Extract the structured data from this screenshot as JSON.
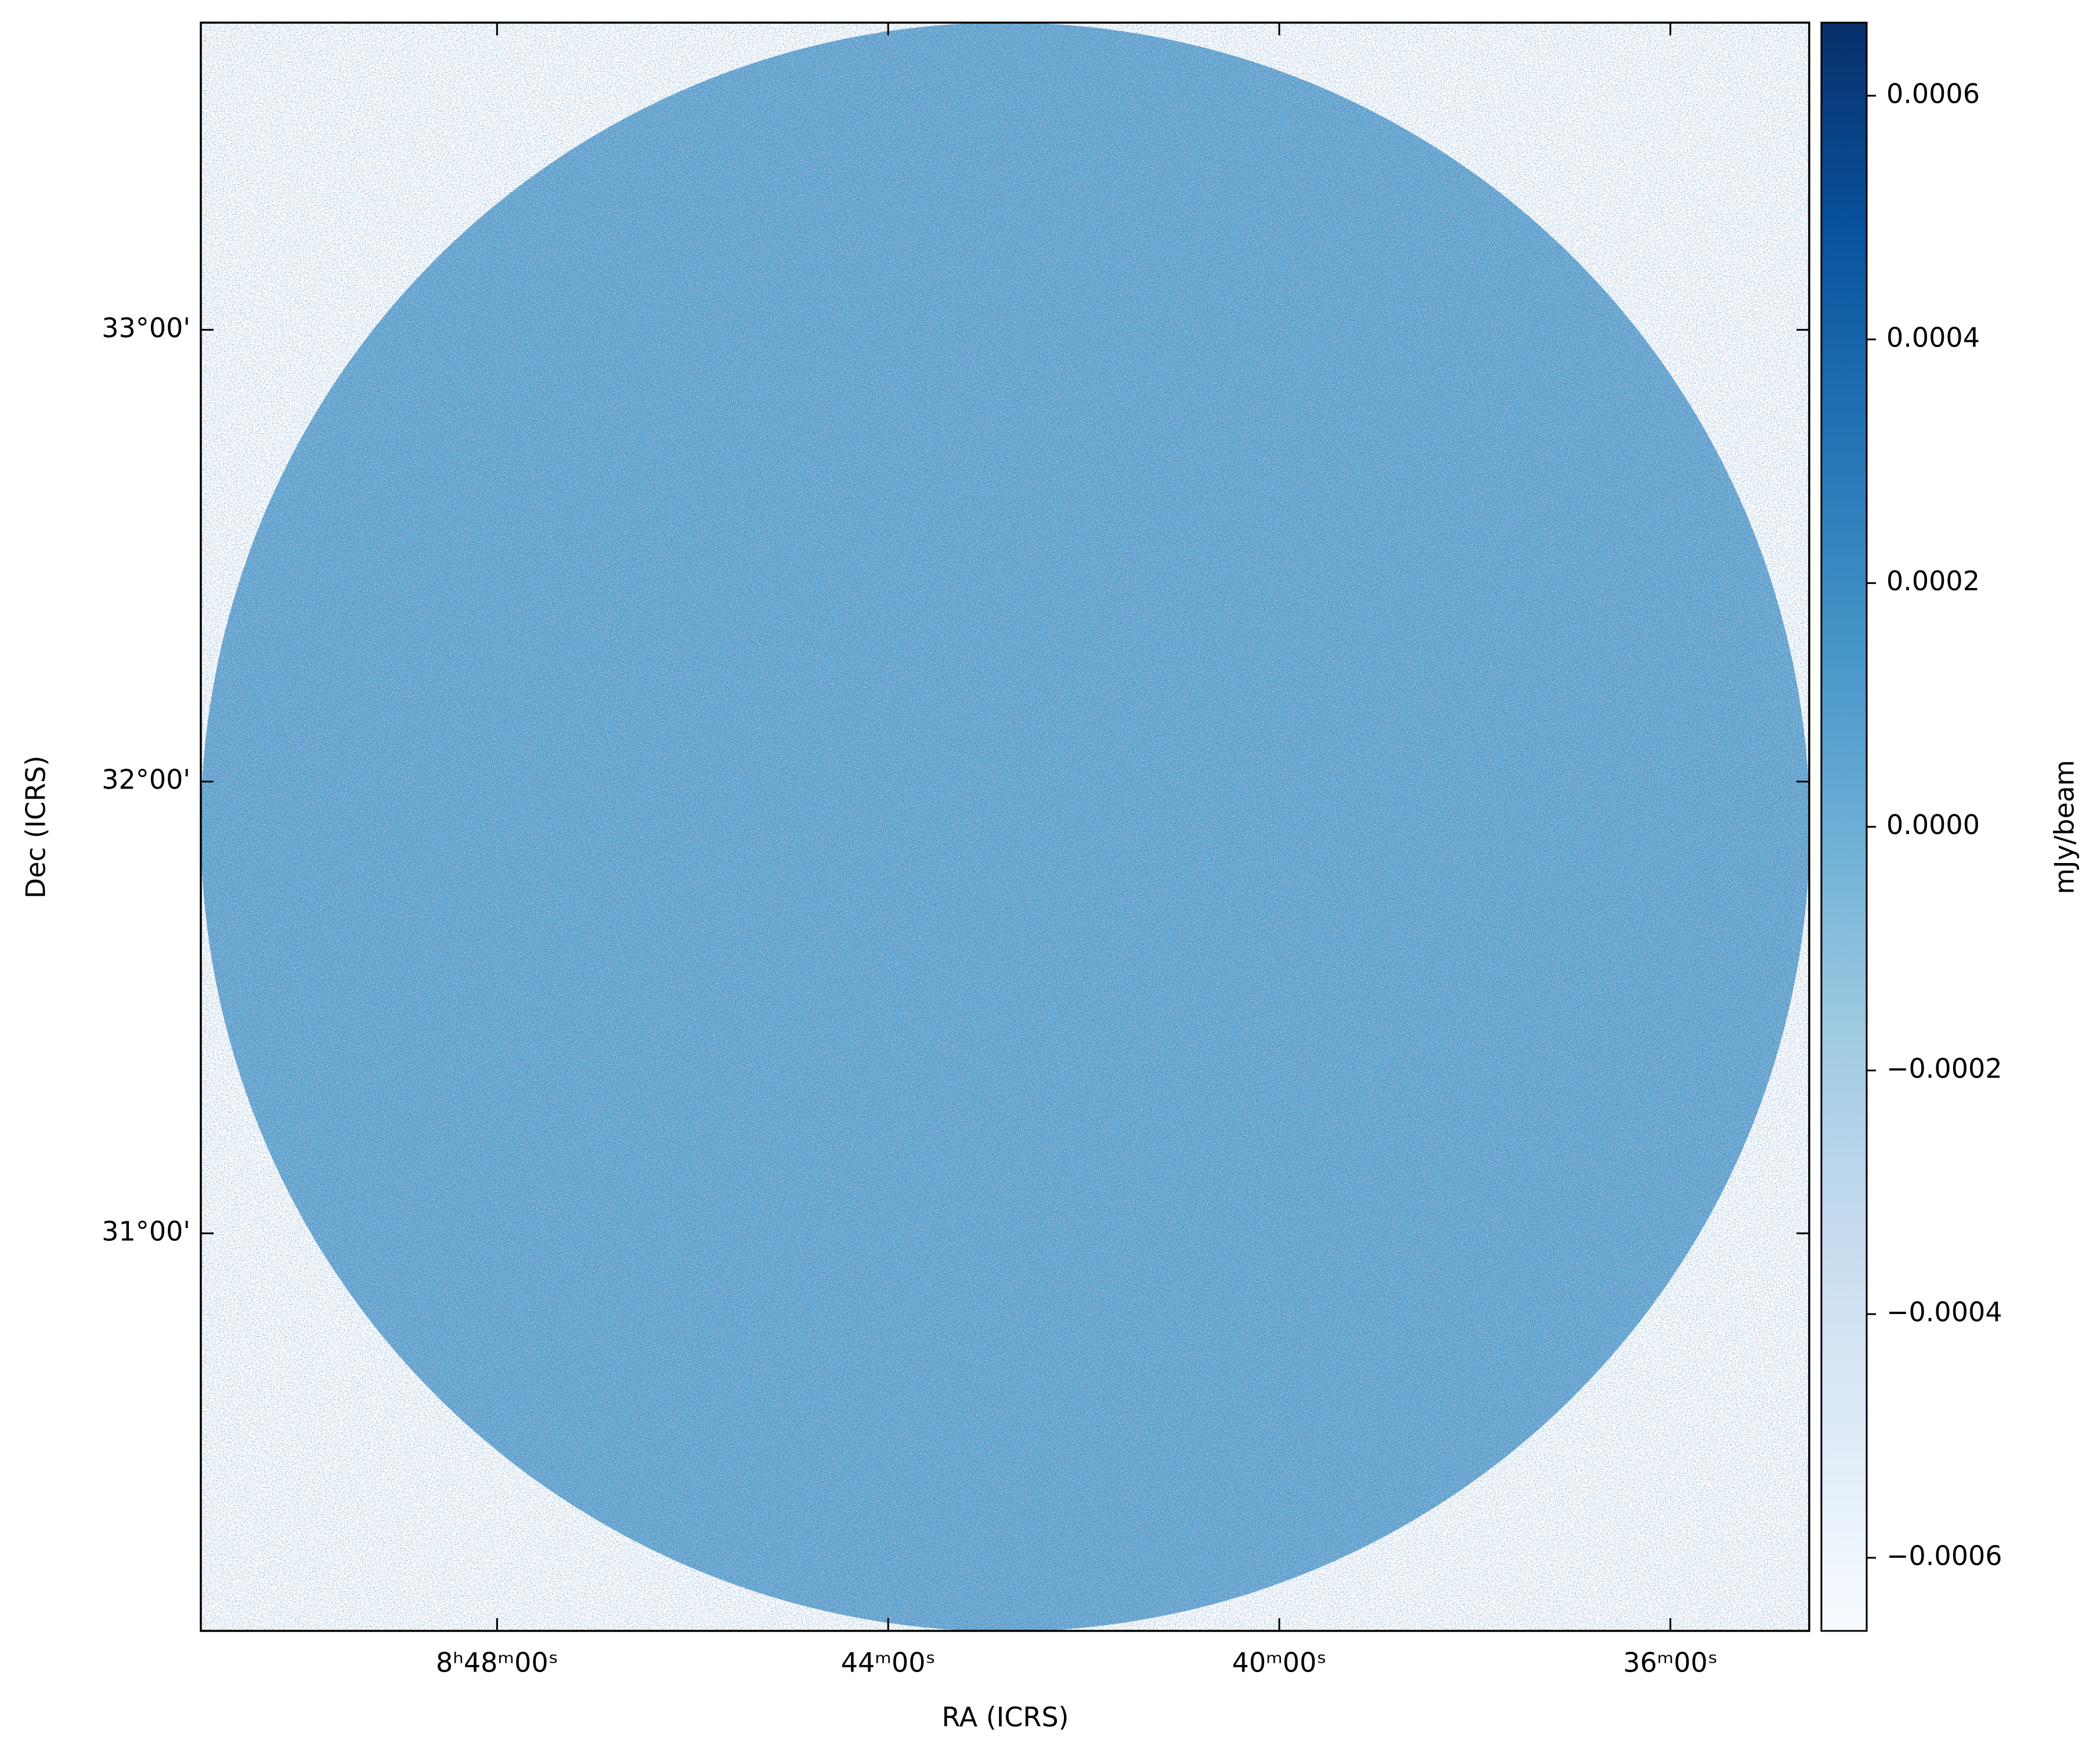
{
  "chart_data": {
    "type": "image",
    "x_label": "RA (ICRS)",
    "y_label": "Dec (ICRS)",
    "colorbar_label": "mJy/beam",
    "colormap": "Blues",
    "xlim": [
      51.03,
      34.58
    ],
    "xticks": [
      {
        "value": 48,
        "label": "8ʰ48ᵐ00ˢ"
      },
      {
        "value": 44,
        "label": "44ᵐ00ˢ"
      },
      {
        "value": 40,
        "label": "40ᵐ00ˢ"
      },
      {
        "value": 36,
        "label": "36ᵐ00ˢ"
      }
    ],
    "ylim": [
      30.12,
      33.68
    ],
    "yticks": [
      {
        "value": 31,
        "label": "31°00'"
      },
      {
        "value": 32,
        "label": "32°00'"
      },
      {
        "value": 33,
        "label": "33°00'"
      }
    ],
    "clim": [
      -0.00066,
      0.00066
    ],
    "cticks": [
      {
        "value": -0.0006,
        "label": "−0.0006"
      },
      {
        "value": -0.0004,
        "label": "−0.0004"
      },
      {
        "value": -0.0002,
        "label": "−0.0002"
      },
      {
        "value": 0,
        "label": "0.0000"
      },
      {
        "value": 0.0002,
        "label": "0.0002"
      },
      {
        "value": 0.0004,
        "label": "0.0004"
      },
      {
        "value": 0.0006,
        "label": "0.0006"
      }
    ]
  }
}
